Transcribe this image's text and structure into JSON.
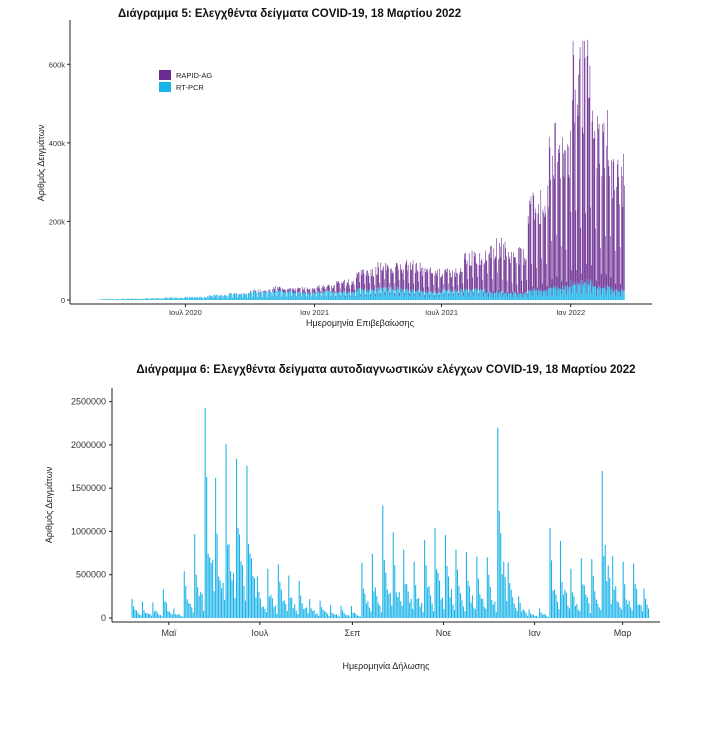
{
  "chart_data": [
    {
      "type": "bar",
      "stacked": true,
      "title": "Διάγραμμα 5: Ελεγχθέντα δείγματα COVID-19, 18 Μαρτίου 2022",
      "xlabel": "Ημερομηνία Επιβεβαίωσης",
      "ylabel": "Αριθμός Δειγμάτων",
      "ylim": [
        0,
        700000
      ],
      "yticks": [
        0,
        200000,
        400000,
        600000
      ],
      "ytick_labels": [
        "0",
        "200k",
        "400k",
        "600k"
      ],
      "xlim": [
        "2020-02-26",
        "2022-03-18"
      ],
      "xticks": [
        "2020-07-01",
        "2021-01-01",
        "2021-07-01",
        "2022-01-01"
      ],
      "xtick_labels": [
        "Ιουλ 2020",
        "Ιαν 2021",
        "Ιουλ 2021",
        "Ιαν 2022"
      ],
      "legend_position": "top-left",
      "grid": false,
      "series_daily_note": "",
      "series": [
        {
          "name": "RAPID-AG",
          "color": "#6a2c91",
          "monthly_weekday_level": [
            {
              "month": "2020-02",
              "value": 0
            },
            {
              "month": "2020-03",
              "value": 0
            },
            {
              "month": "2020-04",
              "value": 0
            },
            {
              "month": "2020-05",
              "value": 0
            },
            {
              "month": "2020-06",
              "value": 0
            },
            {
              "month": "2020-07",
              "value": 0
            },
            {
              "month": "2020-08",
              "value": 0
            },
            {
              "month": "2020-09",
              "value": 1000
            },
            {
              "month": "2020-10",
              "value": 3000
            },
            {
              "month": "2020-11",
              "value": 8000
            },
            {
              "month": "2020-12",
              "value": 10000
            },
            {
              "month": "2021-01",
              "value": 14000
            },
            {
              "month": "2021-02",
              "value": 25000
            },
            {
              "month": "2021-03",
              "value": 45000
            },
            {
              "month": "2021-04",
              "value": 55000
            },
            {
              "month": "2021-05",
              "value": 60000
            },
            {
              "month": "2021-06",
              "value": 50000
            },
            {
              "month": "2021-07",
              "value": 45000
            },
            {
              "month": "2021-08",
              "value": 80000
            },
            {
              "month": "2021-09",
              "value": 110000
            },
            {
              "month": "2021-10",
              "value": 95000
            },
            {
              "month": "2021-11",
              "value": 210000
            },
            {
              "month": "2021-12",
              "value": 340000
            },
            {
              "month": "2022-01",
              "value": 500000
            },
            {
              "month": "2022-02",
              "value": 370000
            },
            {
              "month": "2022-03",
              "value": 280000
            }
          ]
        },
        {
          "name": "RT-PCR",
          "color": "#1ab3e8",
          "monthly_weekday_level": [
            {
              "month": "2020-02",
              "value": 500
            },
            {
              "month": "2020-03",
              "value": 2000
            },
            {
              "month": "2020-04",
              "value": 3000
            },
            {
              "month": "2020-05",
              "value": 4000
            },
            {
              "month": "2020-06",
              "value": 6000
            },
            {
              "month": "2020-07",
              "value": 7000
            },
            {
              "month": "2020-08",
              "value": 12000
            },
            {
              "month": "2020-09",
              "value": 15000
            },
            {
              "month": "2020-10",
              "value": 20000
            },
            {
              "month": "2020-11",
              "value": 22000
            },
            {
              "month": "2020-12",
              "value": 18000
            },
            {
              "month": "2021-01",
              "value": 20000
            },
            {
              "month": "2021-02",
              "value": 20000
            },
            {
              "month": "2021-03",
              "value": 25000
            },
            {
              "month": "2021-04",
              "value": 28000
            },
            {
              "month": "2021-05",
              "value": 25000
            },
            {
              "month": "2021-06",
              "value": 20000
            },
            {
              "month": "2021-07",
              "value": 25000
            },
            {
              "month": "2021-08",
              "value": 25000
            },
            {
              "month": "2021-09",
              "value": 20000
            },
            {
              "month": "2021-10",
              "value": 18000
            },
            {
              "month": "2021-11",
              "value": 25000
            },
            {
              "month": "2021-12",
              "value": 32000
            },
            {
              "month": "2022-01",
              "value": 45000
            },
            {
              "month": "2022-02",
              "value": 32000
            },
            {
              "month": "2022-03",
              "value": 25000
            }
          ]
        }
      ]
    },
    {
      "type": "bar",
      "title": "Διάγραμμα 6: Ελεγχθέντα δείγματα αυτοδιαγνωστικών ελέγχων COVID-19, 18 Μαρτίου 2022",
      "xlabel": "Ημερομηνία Δήλωσης",
      "ylabel": "Αριθμός Δειγμάτων",
      "ylim": [
        0,
        2600000
      ],
      "yticks": [
        0,
        500000,
        1000000,
        1500000,
        2000000,
        2500000
      ],
      "ytick_labels": [
        "0",
        "500000",
        "1000000",
        "1500000",
        "2000000",
        "2500000"
      ],
      "xlim": [
        "2021-04-05",
        "2022-03-18"
      ],
      "xticks": [
        "2021-05-01",
        "2021-07-01",
        "2021-09-01",
        "2021-11-01",
        "2022-01-01",
        "2022-03-01"
      ],
      "xtick_labels": [
        "Μαϊ",
        "Ιουλ",
        "Σεπ",
        "Νοε",
        "Ιαν",
        "Μαρ"
      ],
      "grid": false,
      "color": "#1ab3e8",
      "weekly_peaks": [
        {
          "date": "2021-04-06",
          "value": 220000
        },
        {
          "date": "2021-04-13",
          "value": 190000
        },
        {
          "date": "2021-04-20",
          "value": 180000
        },
        {
          "date": "2021-04-27",
          "value": 330000
        },
        {
          "date": "2021-05-04",
          "value": 110000
        },
        {
          "date": "2021-05-11",
          "value": 540000
        },
        {
          "date": "2021-05-18",
          "value": 970000
        },
        {
          "date": "2021-05-25",
          "value": 2430000
        },
        {
          "date": "2021-06-01",
          "value": 1620000
        },
        {
          "date": "2021-06-08",
          "value": 2010000
        },
        {
          "date": "2021-06-15",
          "value": 1840000
        },
        {
          "date": "2021-06-22",
          "value": 1760000
        },
        {
          "date": "2021-06-29",
          "value": 480000
        },
        {
          "date": "2021-07-06",
          "value": 570000
        },
        {
          "date": "2021-07-13",
          "value": 620000
        },
        {
          "date": "2021-07-20",
          "value": 490000
        },
        {
          "date": "2021-07-27",
          "value": 430000
        },
        {
          "date": "2021-08-03",
          "value": 220000
        },
        {
          "date": "2021-08-10",
          "value": 200000
        },
        {
          "date": "2021-08-17",
          "value": 150000
        },
        {
          "date": "2021-08-24",
          "value": 140000
        },
        {
          "date": "2021-08-31",
          "value": 140000
        },
        {
          "date": "2021-09-07",
          "value": 640000
        },
        {
          "date": "2021-09-14",
          "value": 740000
        },
        {
          "date": "2021-09-21",
          "value": 1300000
        },
        {
          "date": "2021-09-28",
          "value": 990000
        },
        {
          "date": "2021-10-05",
          "value": 790000
        },
        {
          "date": "2021-10-12",
          "value": 650000
        },
        {
          "date": "2021-10-19",
          "value": 900000
        },
        {
          "date": "2021-10-26",
          "value": 1040000
        },
        {
          "date": "2021-11-02",
          "value": 960000
        },
        {
          "date": "2021-11-09",
          "value": 790000
        },
        {
          "date": "2021-11-16",
          "value": 760000
        },
        {
          "date": "2021-11-23",
          "value": 710000
        },
        {
          "date": "2021-11-30",
          "value": 700000
        },
        {
          "date": "2021-12-07",
          "value": 2200000
        },
        {
          "date": "2021-12-14",
          "value": 640000
        },
        {
          "date": "2021-12-21",
          "value": 250000
        },
        {
          "date": "2021-12-28",
          "value": 100000
        },
        {
          "date": "2022-01-04",
          "value": 110000
        },
        {
          "date": "2022-01-11",
          "value": 1040000
        },
        {
          "date": "2022-01-18",
          "value": 890000
        },
        {
          "date": "2022-01-25",
          "value": 570000
        },
        {
          "date": "2022-02-01",
          "value": 690000
        },
        {
          "date": "2022-02-08",
          "value": 680000
        },
        {
          "date": "2022-02-15",
          "value": 1700000
        },
        {
          "date": "2022-02-22",
          "value": 720000
        },
        {
          "date": "2022-03-01",
          "value": 650000
        },
        {
          "date": "2022-03-08",
          "value": 630000
        },
        {
          "date": "2022-03-15",
          "value": 340000
        }
      ]
    }
  ]
}
